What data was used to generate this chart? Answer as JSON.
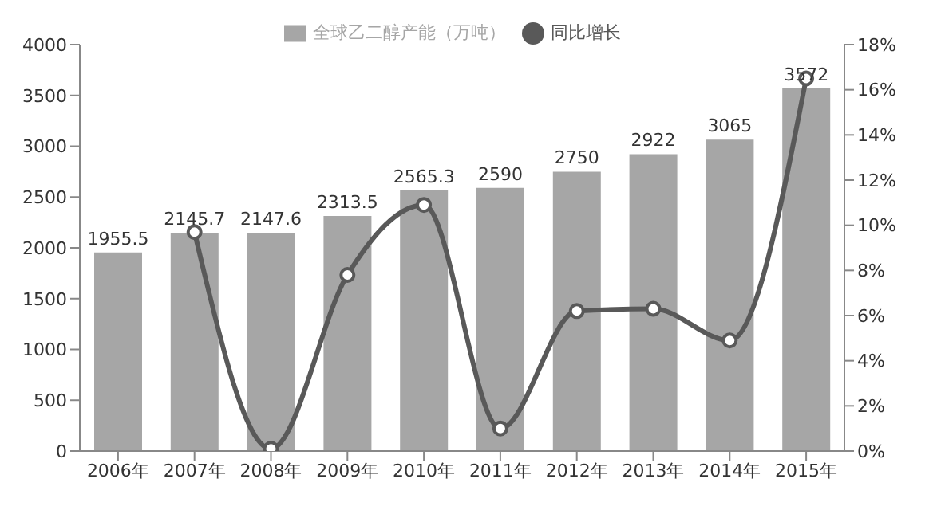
{
  "chart_data": {
    "type": "bar",
    "categories": [
      "2006年",
      "2007年",
      "2008年",
      "2009年",
      "2010年",
      "2011年",
      "2012年",
      "2013年",
      "2014年",
      "2015年"
    ],
    "series": [
      {
        "name": "全球乙二醇产能（万吨）",
        "color": "#a6a6a6",
        "values": [
          1955.5,
          2145.7,
          2147.6,
          2313.5,
          2565.3,
          2590,
          2750,
          2922,
          3065,
          3572
        ],
        "value_labels": [
          "1955.5",
          "2145.7",
          "2147.6",
          "2313.5",
          "2565.3",
          "2590",
          "2750",
          "2922",
          "3065",
          "3572"
        ]
      },
      {
        "name": "同比增长",
        "type": "line",
        "axis": "y2",
        "color": "#595959",
        "marker": "circle",
        "values": [
          null,
          9.7,
          0.1,
          7.8,
          10.9,
          1.0,
          6.2,
          6.3,
          4.9,
          16.5
        ]
      }
    ],
    "ylim": [
      0,
      4000
    ],
    "yticks": [
      0,
      500,
      1000,
      1500,
      2000,
      2500,
      3000,
      3500,
      4000
    ],
    "y2lim": [
      0,
      18
    ],
    "y2ticks": [
      {
        "value": 0,
        "label": "0%"
      },
      {
        "value": 2,
        "label": "2%"
      },
      {
        "value": 4,
        "label": "4%"
      },
      {
        "value": 6,
        "label": "6%"
      },
      {
        "value": 8,
        "label": "8%"
      },
      {
        "value": 10,
        "label": "10%"
      },
      {
        "value": 12,
        "label": "12%"
      },
      {
        "value": 14,
        "label": "14%"
      },
      {
        "value": 16,
        "label": "16%"
      },
      {
        "value": 18,
        "label": "18%"
      }
    ],
    "legend": "top",
    "grid": false
  }
}
